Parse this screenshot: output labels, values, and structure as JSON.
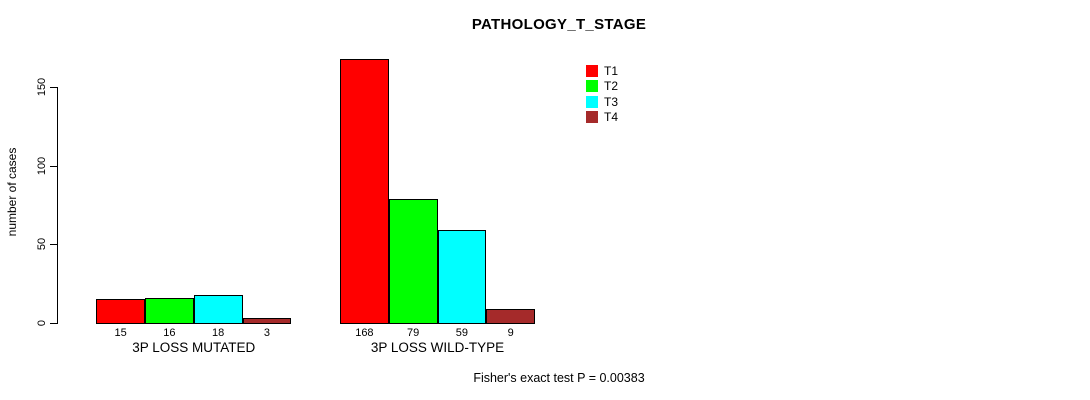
{
  "title": "PATHOLOGY_T_STAGE",
  "footer": "Fisher's exact test P = 0.00383",
  "chart_data": {
    "type": "bar",
    "title": "PATHOLOGY_T_STAGE",
    "xlabel": "",
    "ylabel": "number of cases",
    "ylim": [
      0,
      168
    ],
    "yticks": [
      0,
      50,
      100,
      150
    ],
    "grid": false,
    "legend_position": "inside-top-right",
    "series": [
      {
        "name": "T1",
        "color": "#FF0000"
      },
      {
        "name": "T2",
        "color": "#00FF00"
      },
      {
        "name": "T3",
        "color": "#00FFFF"
      },
      {
        "name": "T4",
        "color": "#A52A2A"
      }
    ],
    "groups": [
      {
        "label": "3P LOSS MUTATED",
        "values": [
          15,
          16,
          18,
          3
        ]
      },
      {
        "label": "3P LOSS WILD-TYPE",
        "values": [
          168,
          79,
          59,
          9
        ]
      }
    ],
    "bar_value_labels": [
      [
        "15",
        "16",
        "18",
        "3"
      ],
      [
        "168",
        "79",
        "59",
        "9"
      ]
    ],
    "annotation": "Fisher's exact test P = 0.00383"
  }
}
